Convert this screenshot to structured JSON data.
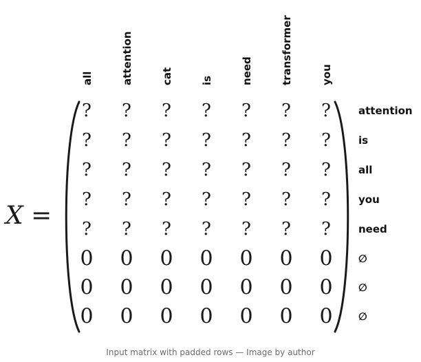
{
  "equation_label": "X =",
  "column_labels": [
    "all",
    "attention",
    "cat",
    "is",
    "need",
    "transformer",
    "you"
  ],
  "row_labels": [
    "attention",
    "is",
    "all",
    "you",
    "need",
    "∅",
    "∅",
    "∅"
  ],
  "matrix": [
    [
      "?",
      "?",
      "?",
      "?",
      "?",
      "?",
      "?"
    ],
    [
      "?",
      "?",
      "?",
      "?",
      "?",
      "?",
      "?"
    ],
    [
      "?",
      "?",
      "?",
      "?",
      "?",
      "?",
      "?"
    ],
    [
      "?",
      "?",
      "?",
      "?",
      "?",
      "?",
      "?"
    ],
    [
      "?",
      "?",
      "?",
      "?",
      "?",
      "?",
      "?"
    ],
    [
      "0",
      "0",
      "0",
      "0",
      "0",
      "0",
      "0"
    ],
    [
      "0",
      "0",
      "0",
      "0",
      "0",
      "0",
      "0"
    ],
    [
      "0",
      "0",
      "0",
      "0",
      "0",
      "0",
      "0"
    ]
  ],
  "caption": "Input matrix with padded rows — Image by author"
}
